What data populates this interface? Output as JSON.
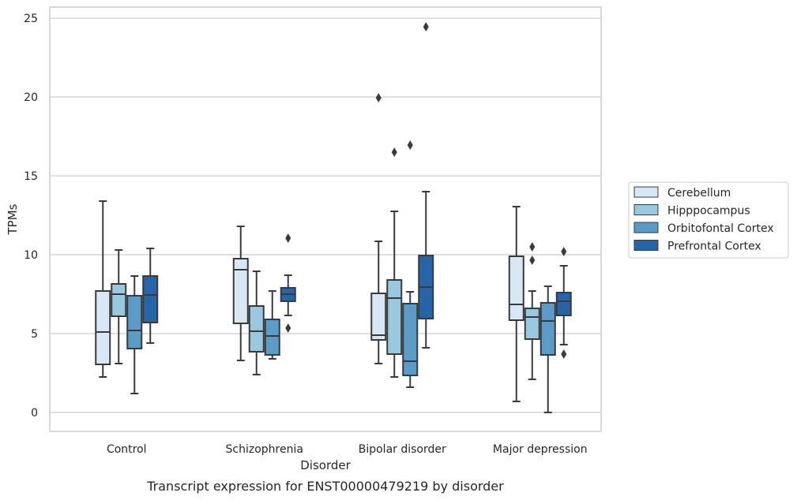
{
  "chart_data": {
    "type": "box",
    "caption": "Transcript expression for ENST00000479219 by disorder",
    "xlabel": "Disorder",
    "ylabel": "TPMs",
    "ylim": [
      -1.2,
      25.7
    ],
    "yticks": [
      0,
      5,
      10,
      15,
      20,
      25
    ],
    "grid": "horizontal",
    "legend_position": "right",
    "categories": [
      "Control",
      "Schizophrenia",
      "Bipolar disorder",
      "Major depression"
    ],
    "series": [
      {
        "name": "Cerebellum",
        "color": "#d8e7f5",
        "boxes": [
          {
            "whisker_low": 2.25,
            "q1": 3.05,
            "median": 5.1,
            "q3": 7.7,
            "whisker_high": 13.4,
            "outliers": []
          },
          {
            "whisker_low": 3.3,
            "q1": 5.65,
            "median": 9.05,
            "q3": 9.75,
            "whisker_high": 11.8,
            "outliers": []
          },
          {
            "whisker_low": 3.1,
            "q1": 4.6,
            "median": 4.9,
            "q3": 7.55,
            "whisker_high": 10.85,
            "outliers": [
              19.95
            ]
          },
          {
            "whisker_low": 0.7,
            "q1": 5.85,
            "median": 6.85,
            "q3": 9.9,
            "whisker_high": 13.05,
            "outliers": []
          }
        ]
      },
      {
        "name": "Hipppocampus",
        "color": "#9ac8e0",
        "boxes": [
          {
            "whisker_low": 3.1,
            "q1": 6.1,
            "median": 7.5,
            "q3": 8.15,
            "whisker_high": 10.3,
            "outliers": []
          },
          {
            "whisker_low": 2.4,
            "q1": 3.85,
            "median": 5.15,
            "q3": 6.75,
            "whisker_high": 8.95,
            "outliers": []
          },
          {
            "whisker_low": 2.25,
            "q1": 3.7,
            "median": 7.25,
            "q3": 8.4,
            "whisker_high": 12.75,
            "outliers": [
              16.5
            ]
          },
          {
            "whisker_low": 2.1,
            "q1": 4.65,
            "median": 6.05,
            "q3": 6.6,
            "whisker_high": 7.7,
            "outliers": [
              10.5,
              9.65
            ]
          }
        ]
      },
      {
        "name": "Orbitofontal Cortex",
        "color": "#5a9bc7",
        "boxes": [
          {
            "whisker_low": 1.2,
            "q1": 4.05,
            "median": 5.2,
            "q3": 7.4,
            "whisker_high": 8.65,
            "outliers": []
          },
          {
            "whisker_low": 3.4,
            "q1": 3.65,
            "median": 4.85,
            "q3": 5.9,
            "whisker_high": 7.7,
            "outliers": []
          },
          {
            "whisker_low": 1.6,
            "q1": 2.35,
            "median": 3.25,
            "q3": 6.9,
            "whisker_high": 7.65,
            "outliers": [
              16.95
            ]
          },
          {
            "whisker_low": 0.0,
            "q1": 3.65,
            "median": 5.8,
            "q3": 6.95,
            "whisker_high": 8.0,
            "outliers": []
          }
        ]
      },
      {
        "name": "Prefrontal Cortex",
        "color": "#2865a8",
        "boxes": [
          {
            "whisker_low": 4.4,
            "q1": 5.7,
            "median": 7.45,
            "q3": 8.65,
            "whisker_high": 10.4,
            "outliers": []
          },
          {
            "whisker_low": 6.15,
            "q1": 7.05,
            "median": 7.5,
            "q3": 7.9,
            "whisker_high": 8.7,
            "outliers": [
              11.05,
              5.35
            ]
          },
          {
            "whisker_low": 4.1,
            "q1": 5.95,
            "median": 7.95,
            "q3": 9.95,
            "whisker_high": 14.0,
            "outliers": [
              24.45
            ]
          },
          {
            "whisker_low": 4.3,
            "q1": 6.15,
            "median": 7.05,
            "q3": 7.6,
            "whisker_high": 9.3,
            "outliers": [
              10.2,
              3.7
            ]
          }
        ]
      }
    ]
  }
}
